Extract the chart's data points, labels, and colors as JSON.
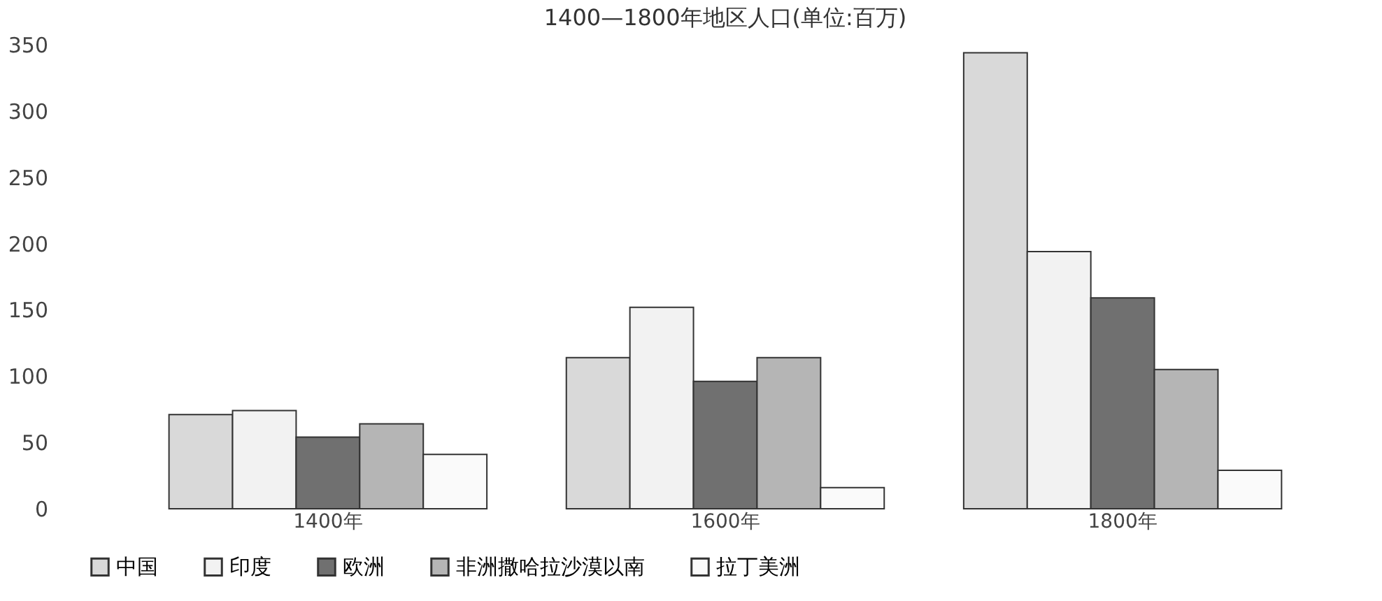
{
  "chart_data": {
    "type": "bar",
    "title": "1400—1800年地区人口(单位:百万)",
    "categories": [
      "1400年",
      "1600年",
      "1800年"
    ],
    "series": [
      {
        "name": "中国",
        "color": "#d9d9d9",
        "values": [
          71,
          114,
          344
        ]
      },
      {
        "name": "印度",
        "color": "#f2f2f2",
        "values": [
          74,
          152,
          194
        ]
      },
      {
        "name": "欧洲",
        "color": "#707070",
        "values": [
          54,
          96,
          159
        ]
      },
      {
        "name": "非洲撒哈拉沙漠以南",
        "color": "#b5b5b5",
        "values": [
          64,
          114,
          105
        ]
      },
      {
        "name": "拉丁美洲",
        "color": "#fafafa",
        "values": [
          41,
          16,
          29
        ]
      }
    ],
    "ylim": [
      0,
      350
    ],
    "yticks": [
      0,
      50,
      100,
      150,
      200,
      250,
      300,
      350
    ],
    "grid": false,
    "legend": "bottom"
  }
}
